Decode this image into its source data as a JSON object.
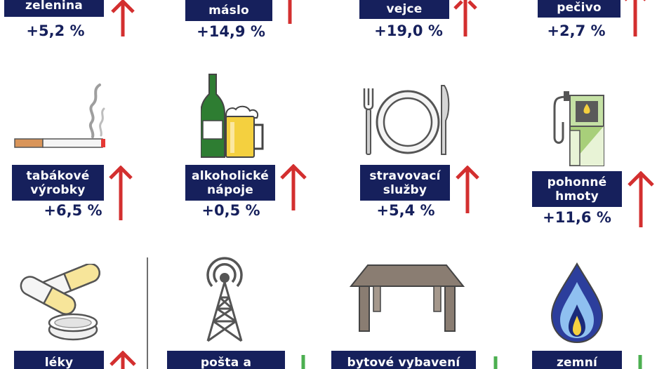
{
  "colors": {
    "label_bg": "#16205c",
    "label_text": "#ffffff",
    "value_text": "#16205c",
    "arrow_up": "#d32f2f",
    "arrow_down": "#4caf50"
  },
  "items": [
    {
      "id": "zelenina",
      "label_lines": [
        "zelenina"
      ],
      "value": "+5,2 %",
      "direction": "up"
    },
    {
      "id": "maslo",
      "label_lines": [
        "máslo"
      ],
      "value": "+14,9 %",
      "direction": "up"
    },
    {
      "id": "vejce",
      "label_lines": [
        "vejce"
      ],
      "value": "+19,0 %",
      "direction": "up"
    },
    {
      "id": "pecivo",
      "label_lines": [
        "pečivo"
      ],
      "value": "+2,7 %",
      "direction": "up"
    },
    {
      "id": "tabak",
      "label_lines": [
        "tabákové",
        "výrobky"
      ],
      "value": "+6,5 %",
      "direction": "up",
      "icon": "cigarette-icon"
    },
    {
      "id": "alkohol",
      "label_lines": [
        "alkoholické",
        "nápoje"
      ],
      "value": "+0,5 %",
      "direction": "up",
      "icon": "wine-beer-icon"
    },
    {
      "id": "stravovani",
      "label_lines": [
        "stravovací",
        "služby"
      ],
      "value": "+5,4 %",
      "direction": "up",
      "icon": "plate-cutlery-icon"
    },
    {
      "id": "pohonne",
      "label_lines": [
        "pohonné",
        "hmoty"
      ],
      "value": "+11,6 %",
      "direction": "up",
      "icon": "fuel-pump-icon"
    },
    {
      "id": "leky",
      "label_lines": [
        "léky"
      ],
      "direction": "up",
      "icon": "pills-icon"
    },
    {
      "id": "posta",
      "label_lines": [
        "pošta a"
      ],
      "direction": "down",
      "icon": "antenna-tower-icon"
    },
    {
      "id": "bytove",
      "label_lines": [
        "bytové vybavení"
      ],
      "direction": "down",
      "icon": "table-icon"
    },
    {
      "id": "plyn",
      "label_lines": [
        "zemní"
      ],
      "direction": "down",
      "icon": "gas-flame-icon"
    }
  ]
}
